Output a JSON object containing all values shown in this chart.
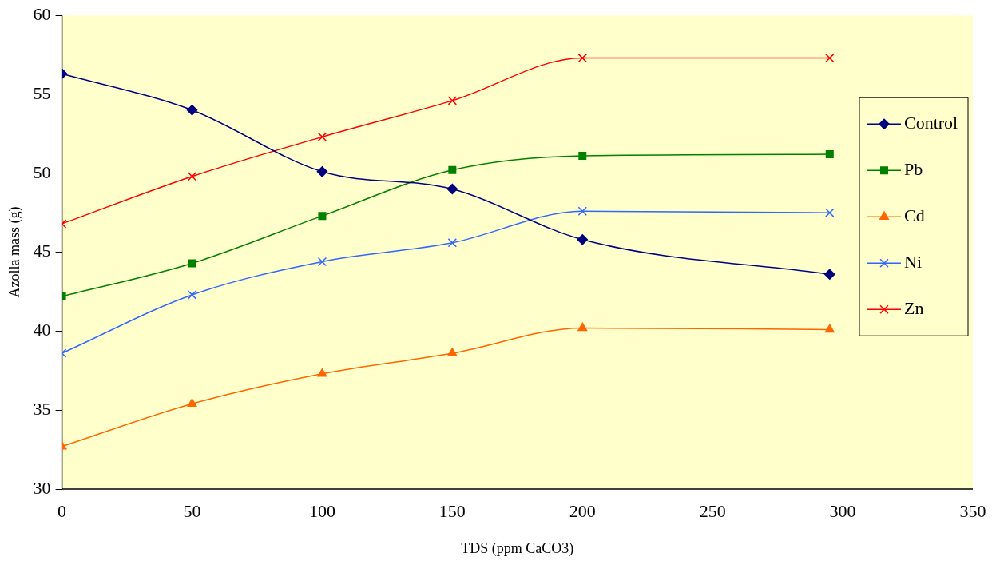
{
  "chart_data": {
    "type": "line",
    "xlabel": "TDS (ppm CaCO3)",
    "ylabel": "Azolla mass (g)",
    "x": [
      0,
      50,
      100,
      150,
      200,
      295
    ],
    "series": [
      {
        "name": "Control",
        "color": "#000080",
        "marker": "diamond",
        "values": [
          56.3,
          54.0,
          50.1,
          49.0,
          45.8,
          43.6
        ]
      },
      {
        "name": "Pb",
        "color": "#008000",
        "marker": "square",
        "values": [
          42.2,
          44.3,
          47.3,
          50.2,
          51.1,
          51.2
        ]
      },
      {
        "name": "Cd",
        "color": "#ff6600",
        "marker": "triangle",
        "values": [
          32.7,
          35.4,
          37.3,
          38.6,
          40.2,
          40.1
        ]
      },
      {
        "name": "Ni",
        "color": "#3366ff",
        "marker": "cross",
        "values": [
          38.6,
          42.3,
          44.4,
          45.6,
          47.6,
          47.5
        ]
      },
      {
        "name": "Zn",
        "color": "#ff0000",
        "marker": "cross",
        "values": [
          46.8,
          49.8,
          52.3,
          54.6,
          57.3,
          57.3
        ]
      }
    ],
    "xlim": [
      0,
      350
    ],
    "xticks": [
      0,
      50,
      100,
      150,
      200,
      250,
      300,
      350
    ],
    "ylim": [
      30,
      60
    ],
    "yticks": [
      30,
      35,
      40,
      45,
      50,
      55,
      60
    ],
    "grid": false,
    "legend": "right"
  }
}
